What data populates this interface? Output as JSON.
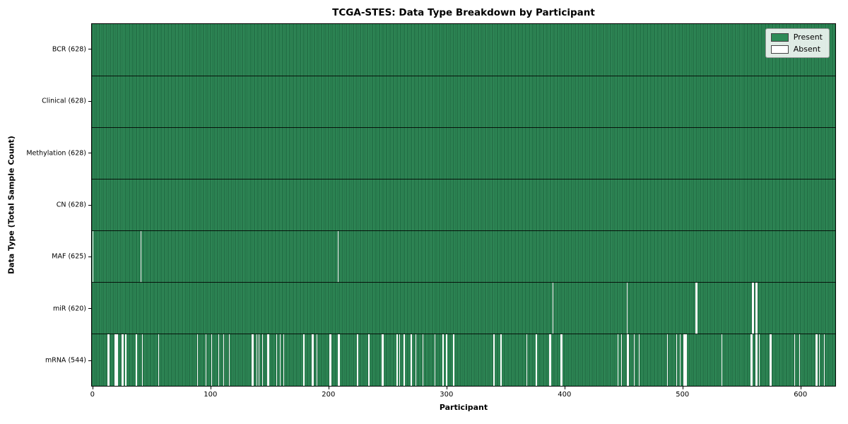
{
  "title": "TCGA-STES: Data Type Breakdown by Participant",
  "xlabel": "Participant",
  "ylabel": "Data Type (Total Sample Count)",
  "legend": {
    "present_label": "Present",
    "absent_label": "Absent"
  },
  "colors": {
    "present": "#2e8b57",
    "present_line": "rgba(8,44,26,0.5)",
    "absent": "#fbfbfb",
    "legend_bg": "rgba(255,255,255,0.85)",
    "axis": "#000000"
  },
  "chart_data": {
    "type": "heatmap",
    "title": "TCGA-STES: Data Type Breakdown by Participant",
    "xlabel": "Participant",
    "ylabel": "Data Type (Total Sample Count)",
    "legend_entries": [
      {
        "label": "Present",
        "color": "#2e8b57"
      },
      {
        "label": "Absent",
        "color": "#ffffff"
      }
    ],
    "legend_position": "upper right",
    "total_participants": 628,
    "x_ticks": [
      0,
      100,
      200,
      300,
      400,
      500,
      600
    ],
    "x_range": [
      0,
      629
    ],
    "rows": [
      {
        "label": "BCR (628)",
        "data_type": "BCR",
        "present_count": 628,
        "absent_count": 0,
        "absent_participants": []
      },
      {
        "label": "Clinical (628)",
        "data_type": "Clinical",
        "present_count": 628,
        "absent_count": 0,
        "absent_participants": []
      },
      {
        "label": "Methylation (628)",
        "data_type": "Methylation",
        "present_count": 628,
        "absent_count": 0,
        "absent_participants": []
      },
      {
        "label": "CN (628)",
        "data_type": "CN",
        "present_count": 628,
        "absent_count": 0,
        "absent_participants": []
      },
      {
        "label": "MAF (625)",
        "data_type": "MAF",
        "present_count": 625,
        "absent_count": 3,
        "absent_participants": [
          0,
          41,
          208
        ]
      },
      {
        "label": "miR (620)",
        "data_type": "miR",
        "present_count": 620,
        "absent_count": 8,
        "absent_participants": [
          390,
          453,
          511,
          512,
          559,
          560,
          562,
          563
        ]
      },
      {
        "label": "mRNA (544)",
        "data_type": "mRNA",
        "present_count": 544,
        "absent_count": 84,
        "absent_participants": [
          13,
          14,
          19,
          20,
          21,
          25,
          26,
          28,
          37,
          42,
          56,
          89,
          96,
          101,
          107,
          111,
          116,
          135,
          136,
          139,
          141,
          144,
          148,
          149,
          156,
          159,
          162,
          179,
          186,
          187,
          190,
          201,
          202,
          208,
          209,
          224,
          225,
          234,
          245,
          246,
          258,
          260,
          264,
          270,
          274,
          280,
          290,
          297,
          300,
          306,
          340,
          346,
          368,
          376,
          387,
          388,
          397,
          398,
          445,
          448,
          453,
          454,
          459,
          463,
          487,
          495,
          498,
          501,
          502,
          503,
          533,
          558,
          559,
          562,
          563,
          565,
          574,
          575,
          595,
          599,
          613,
          614,
          616,
          620
        ]
      }
    ]
  }
}
